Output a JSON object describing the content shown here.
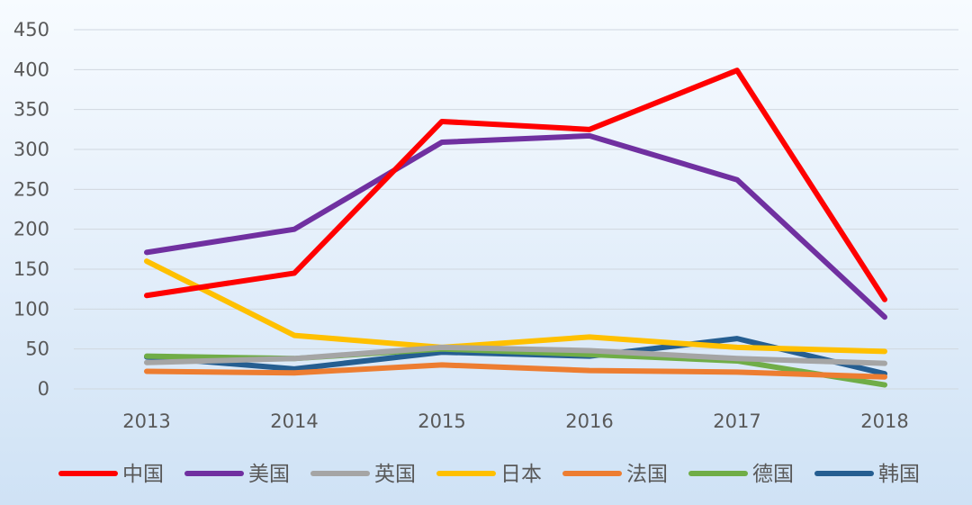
{
  "chart_data": {
    "type": "line",
    "title": "",
    "xlabel": "",
    "ylabel": "",
    "categories": [
      "2013",
      "2014",
      "2015",
      "2016",
      "2017",
      "2018"
    ],
    "ylim": [
      0,
      450
    ],
    "yticks": [
      0,
      50,
      100,
      150,
      200,
      250,
      300,
      350,
      400,
      450
    ],
    "grid": true,
    "legend_position": "bottom",
    "series": [
      {
        "name": "中国",
        "color": "#ff0000",
        "values": [
          117,
          145,
          335,
          325,
          399,
          112
        ]
      },
      {
        "name": "美国",
        "color": "#7030a0",
        "values": [
          171,
          200,
          309,
          317,
          262,
          90
        ]
      },
      {
        "name": "英国",
        "color": "#a5a5a5",
        "values": [
          33,
          38,
          52,
          48,
          38,
          32
        ]
      },
      {
        "name": "日本",
        "color": "#ffc000",
        "values": [
          160,
          67,
          52,
          65,
          52,
          47
        ]
      },
      {
        "name": "法国",
        "color": "#ed7d31",
        "values": [
          22,
          20,
          30,
          23,
          21,
          15
        ]
      },
      {
        "name": "德国",
        "color": "#70ad47",
        "values": [
          41,
          38,
          50,
          43,
          35,
          5
        ]
      },
      {
        "name": "韩国",
        "color": "#255e91",
        "values": [
          40,
          25,
          46,
          41,
          63,
          19
        ]
      }
    ]
  }
}
